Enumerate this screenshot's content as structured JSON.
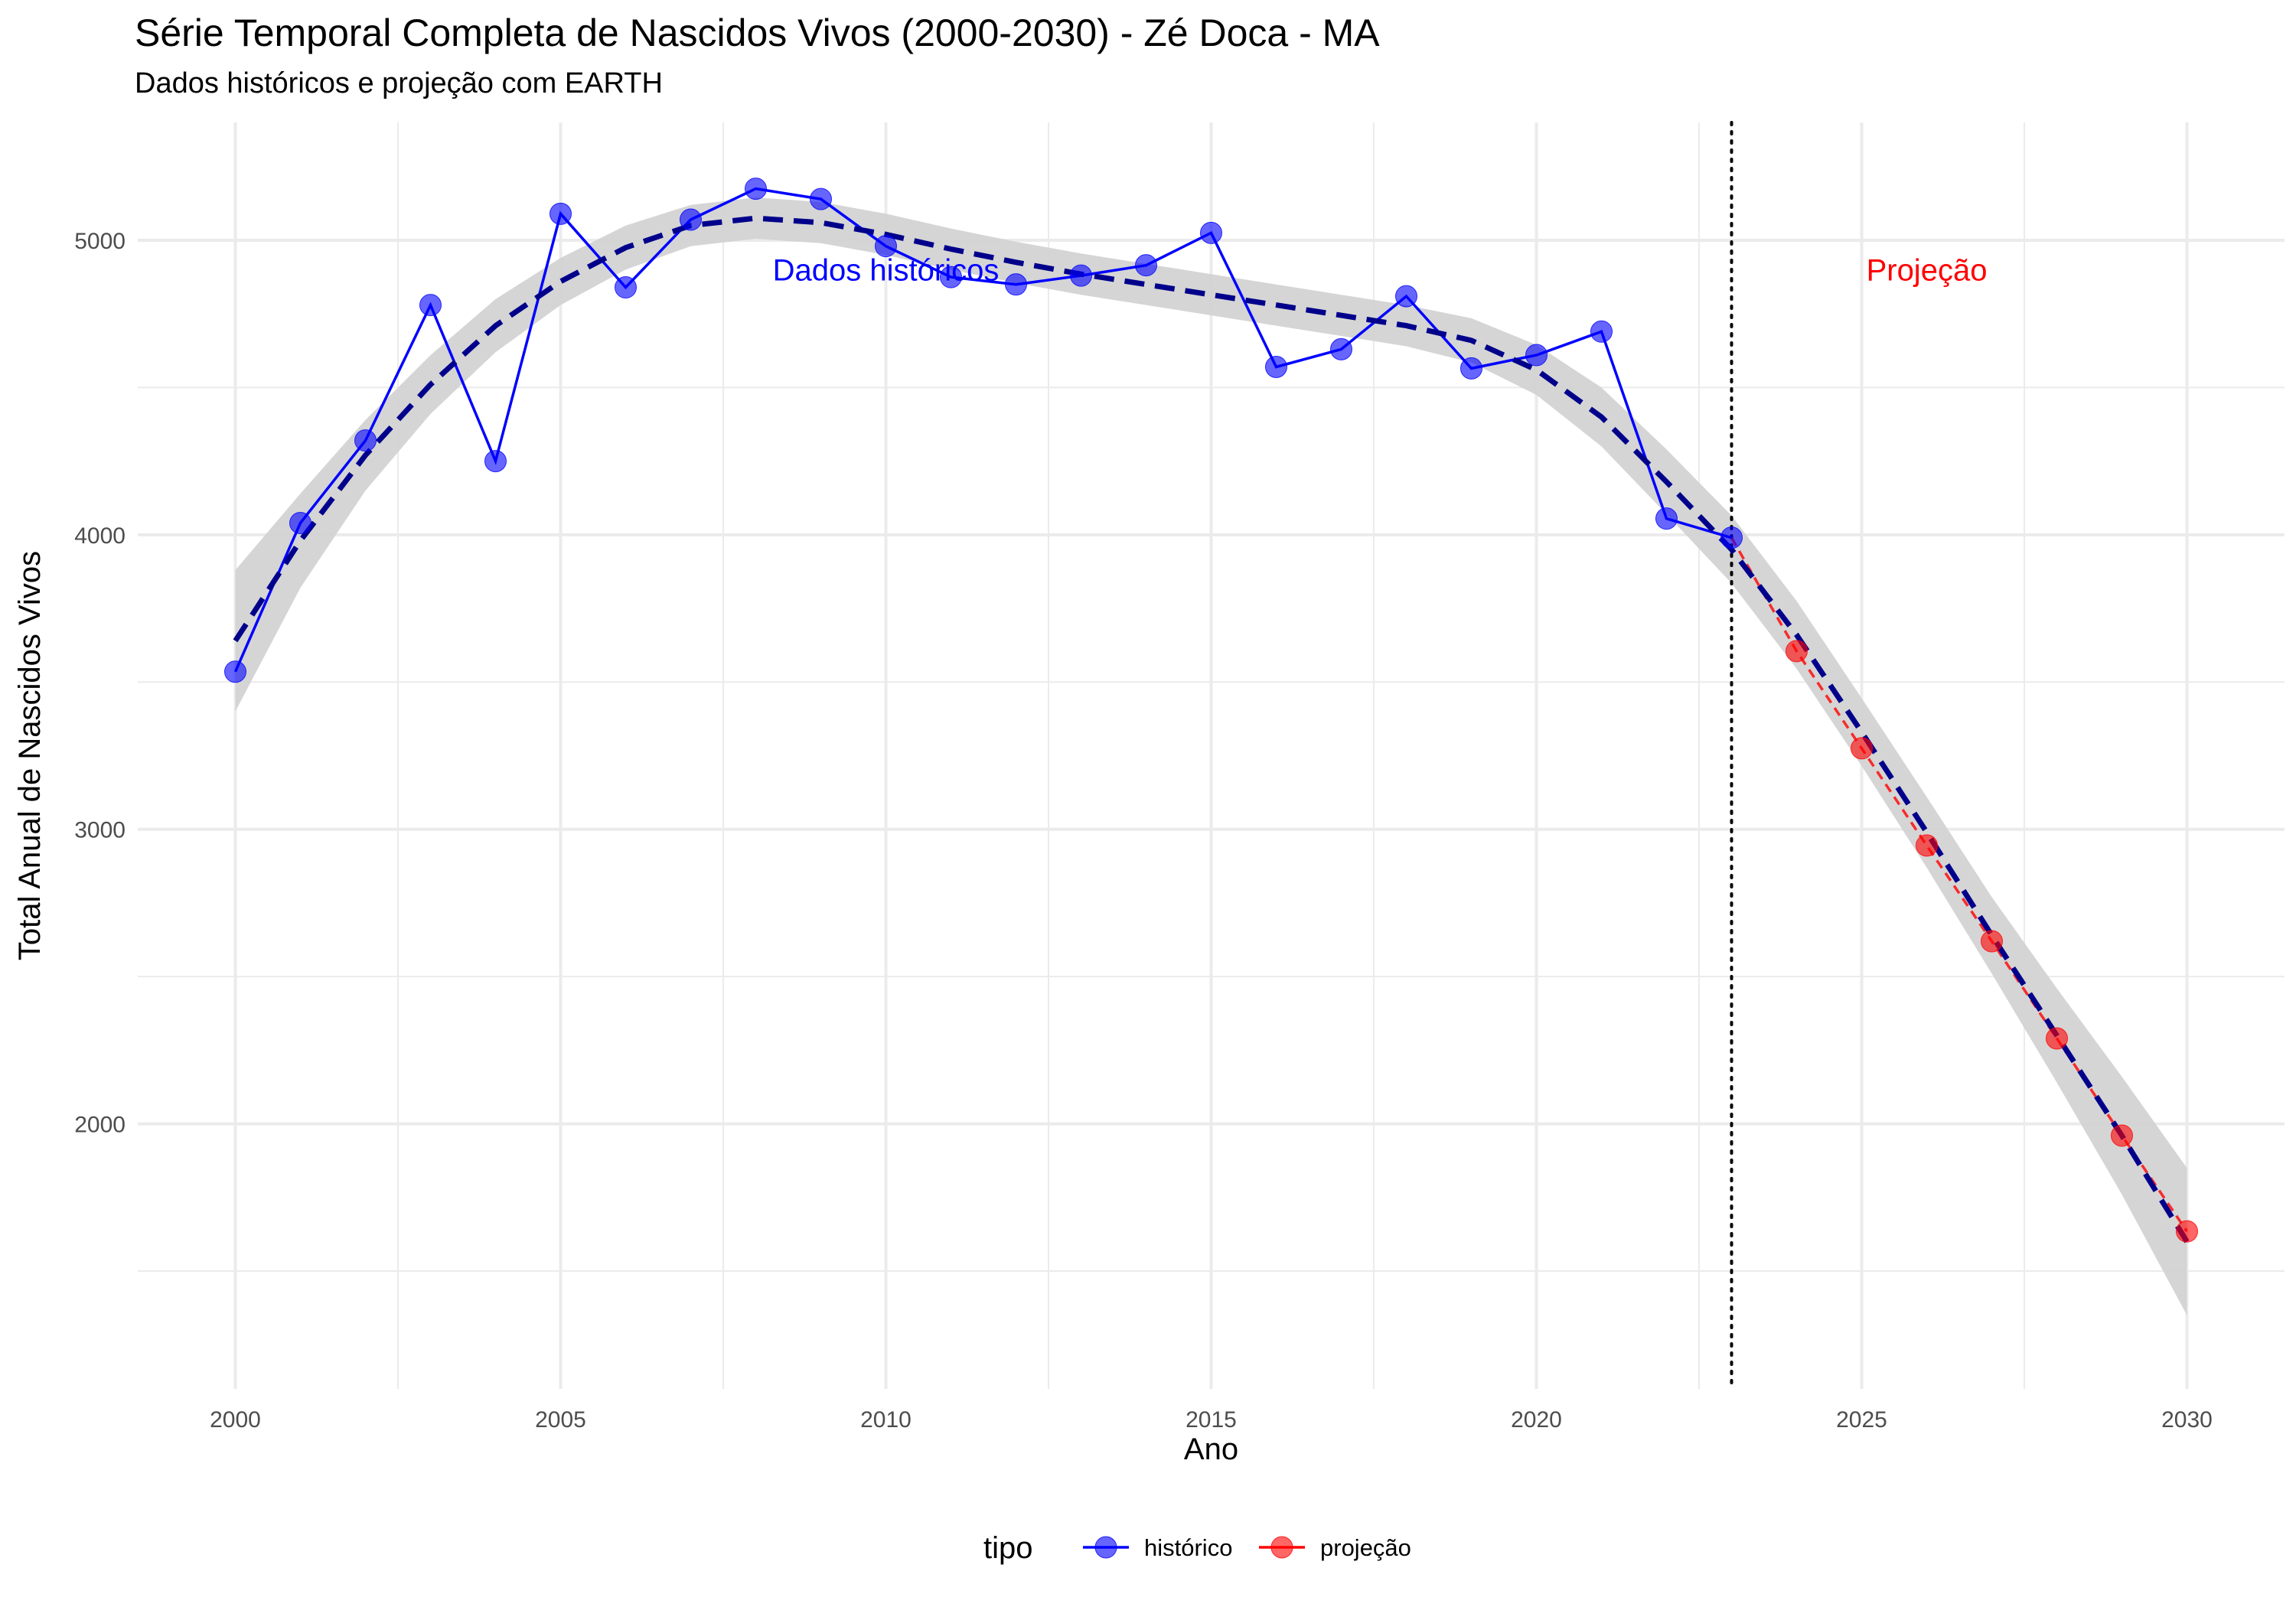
{
  "title": "Série Temporal Completa de Nascidos Vivos (2000-2030) -  Zé Doca - MA",
  "subtitle": "Dados históricos e projeção com EARTH",
  "colors": {
    "historico": "#0000FF",
    "projecao": "#FF0000",
    "trend": "#00008B",
    "ribbon": "#D3D3D3",
    "grid": "#EBEBEB"
  },
  "chart_data": {
    "type": "line",
    "xlabel": "Ano",
    "ylabel": "Total Anual de Nascidos Vivos",
    "xlim": [
      1998.5,
      2031.5
    ],
    "ylim": [
      1100,
      5400
    ],
    "x_ticks": [
      2000,
      2005,
      2010,
      2015,
      2020,
      2025,
      2030
    ],
    "y_ticks": [
      2000,
      3000,
      4000,
      5000
    ],
    "grid": true,
    "legend": {
      "title": "tipo",
      "position": "bottom",
      "entries": [
        "histórico",
        "projeção"
      ]
    },
    "series": [
      {
        "name": "histórico",
        "x": [
          2000,
          2001,
          2002,
          2003,
          2004,
          2005,
          2006,
          2007,
          2008,
          2009,
          2010,
          2011,
          2012,
          2013,
          2014,
          2015,
          2016,
          2017,
          2018,
          2019,
          2020,
          2021,
          2022,
          2023
        ],
        "y": [
          3535,
          4040,
          4320,
          4780,
          4250,
          5090,
          4840,
          5070,
          5175,
          5140,
          4980,
          4875,
          4850,
          4880,
          4915,
          5025,
          4570,
          4630,
          4810,
          4565,
          4610,
          4690,
          4055,
          3990
        ]
      },
      {
        "name": "projeção",
        "x": [
          2023,
          2024,
          2025,
          2026,
          2027,
          2028,
          2029,
          2030
        ],
        "y": [
          3990,
          3605,
          3275,
          2945,
          2620,
          2290,
          1960,
          1635
        ]
      }
    ],
    "trend": {
      "x": [
        2000,
        2001,
        2002,
        2003,
        2004,
        2005,
        2006,
        2007,
        2008,
        2009,
        2010,
        2011,
        2012,
        2013,
        2014,
        2015,
        2016,
        2017,
        2018,
        2019,
        2020,
        2021,
        2022,
        2023,
        2024,
        2025,
        2026,
        2027,
        2028,
        2029,
        2030
      ],
      "y": [
        3640,
        3980,
        4270,
        4510,
        4710,
        4860,
        4975,
        5050,
        5075,
        5060,
        5020,
        4970,
        4925,
        4885,
        4850,
        4815,
        4780,
        4745,
        4710,
        4660,
        4560,
        4400,
        4180,
        3950,
        3660,
        3330,
        2990,
        2640,
        2300,
        1960,
        1600
      ],
      "band": [
        240,
        160,
        120,
        100,
        90,
        80,
        75,
        70,
        70,
        70,
        70,
        70,
        70,
        70,
        70,
        70,
        70,
        70,
        70,
        75,
        85,
        100,
        110,
        115,
        115,
        115,
        120,
        130,
        160,
        200,
        250
      ]
    },
    "vline_x": 2023,
    "annotations": [
      {
        "text": "Dados históricos",
        "x": 2010,
        "y": 4900,
        "color": "#0000FF"
      },
      {
        "text": "Projeção",
        "x": 2026,
        "y": 4900,
        "color": "#FF0000"
      }
    ]
  }
}
